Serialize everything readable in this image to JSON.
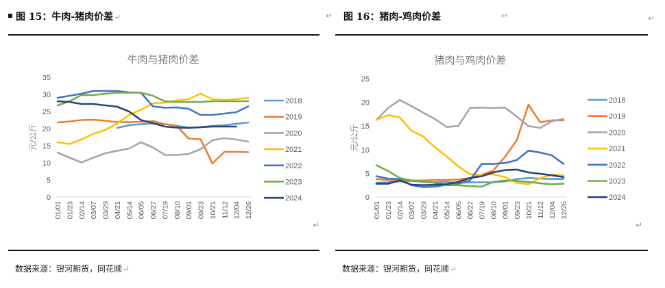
{
  "figures": [
    {
      "label": "图 15：牛肉-猪肉价差",
      "source": "数据来源：银河期货，同花顺",
      "para_mark": "↵"
    },
    {
      "label": "图 16：猪肉-鸡肉价差",
      "source": "数据来源：银河期货，同花顺",
      "para_mark": "↵"
    }
  ],
  "chart_data": [
    {
      "type": "line",
      "title": "牛肉与猪肉价差",
      "xlabel": "",
      "ylabel": "元/公斤",
      "ylim": [
        0,
        35
      ],
      "yticks": [
        0,
        5,
        10,
        15,
        20,
        25,
        30,
        35
      ],
      "grid": false,
      "legend_position": "right",
      "categories": [
        "01/01",
        "01/23",
        "02/14",
        "03/07",
        "03/29",
        "04/21",
        "05/14",
        "06/05",
        "06/27",
        "07/19",
        "08/10",
        "09/01",
        "09/23",
        "10/21",
        "11/12",
        "12/04",
        "12/26"
      ],
      "series": [
        {
          "name": "2018",
          "color": "#5B9BD5",
          "values": [
            null,
            null,
            null,
            null,
            null,
            20.2,
            21.0,
            21.3,
            21.5,
            21.3,
            20.8,
            20.3,
            20.4,
            20.8,
            21.0,
            21.4,
            21.8
          ]
        },
        {
          "name": "2019",
          "color": "#ED7D31",
          "values": [
            21.8,
            22.1,
            22.5,
            22.6,
            22.3,
            21.9,
            21.9,
            22.0,
            22.2,
            21.3,
            20.8,
            17.1,
            16.9,
            9.8,
            13.2,
            13.2,
            13.1
          ]
        },
        {
          "name": "2020",
          "color": "#A5A5A5",
          "values": [
            13.0,
            11.5,
            10.1,
            11.5,
            12.8,
            13.5,
            14.2,
            16.0,
            14.5,
            12.3,
            12.3,
            12.6,
            14.0,
            16.6,
            17.2,
            16.8,
            16.2
          ]
        },
        {
          "name": "2021",
          "color": "#FFC000",
          "values": [
            16.0,
            15.5,
            16.8,
            18.5,
            19.6,
            21.5,
            24.0,
            25.5,
            27.4,
            27.6,
            28.2,
            28.6,
            30.2,
            28.6,
            28.4,
            28.6,
            29.0
          ]
        },
        {
          "name": "2022",
          "color": "#4472C4",
          "values": [
            29.0,
            29.6,
            30.2,
            31.0,
            31.0,
            31.0,
            30.6,
            30.5,
            26.5,
            26.1,
            26.2,
            25.8,
            24.0,
            24.0,
            24.4,
            24.8,
            26.5
          ]
        },
        {
          "name": "2023",
          "color": "#70AD47",
          "values": [
            26.8,
            28.0,
            29.8,
            29.8,
            30.2,
            30.5,
            30.5,
            30.5,
            29.6,
            28.0,
            27.8,
            27.8,
            27.8,
            28.0,
            28.0,
            28.0,
            28.0
          ]
        },
        {
          "name": "2024",
          "color": "#264478",
          "values": [
            28.0,
            27.8,
            27.2,
            27.2,
            26.8,
            26.4,
            25.0,
            22.5,
            21.6,
            20.6,
            20.3,
            20.2,
            20.4,
            20.6,
            20.6,
            20.6,
            null
          ]
        }
      ]
    },
    {
      "type": "line",
      "title": "猪肉与鸡肉价差",
      "xlabel": "",
      "ylabel": "元/公斤",
      "ylim": [
        0,
        25
      ],
      "yticks": [
        0,
        5,
        10,
        15,
        20,
        25
      ],
      "grid": false,
      "legend_position": "right",
      "categories": [
        "01/01",
        "01/23",
        "02/14",
        "03/07",
        "03/29",
        "04/21",
        "05/14",
        "06/05",
        "06/27",
        "07/19",
        "08/10",
        "09/01",
        "09/23",
        "10/21",
        "11/12",
        "12/04",
        "12/26"
      ],
      "series": [
        {
          "name": "2018",
          "color": "#5B9BD5",
          "values": [
            3.0,
            3.1,
            3.3,
            3.4,
            3.2,
            3.1,
            3.2,
            3.0,
            3.1,
            3.1,
            3.1,
            3.3,
            3.8,
            4.0,
            3.9,
            3.8,
            3.8
          ]
        },
        {
          "name": "2019",
          "color": "#ED7D31",
          "values": [
            3.8,
            3.6,
            3.4,
            3.5,
            3.5,
            3.6,
            3.6,
            3.7,
            4.0,
            4.7,
            5.6,
            8.5,
            12.0,
            19.5,
            15.8,
            16.2,
            16.2
          ]
        },
        {
          "name": "2020",
          "color": "#A5A5A5",
          "values": [
            16.3,
            18.8,
            20.5,
            19.2,
            17.8,
            16.5,
            14.8,
            15.0,
            18.8,
            18.9,
            18.8,
            18.9,
            17.0,
            15.0,
            14.6,
            16.0,
            16.5
          ]
        },
        {
          "name": "2021",
          "color": "#FFC000",
          "values": [
            16.3,
            17.3,
            16.8,
            14.0,
            12.8,
            10.5,
            8.6,
            6.5,
            4.8,
            4.7,
            4.8,
            4.2,
            3.0,
            2.7,
            4.0,
            4.7,
            4.6
          ]
        },
        {
          "name": "2022",
          "color": "#4472C4",
          "values": [
            4.4,
            3.9,
            3.8,
            2.5,
            2.1,
            2.2,
            2.6,
            2.8,
            3.5,
            7.0,
            7.0,
            7.2,
            7.8,
            9.8,
            9.4,
            8.8,
            7.0
          ]
        },
        {
          "name": "2023",
          "color": "#70AD47",
          "values": [
            6.7,
            5.5,
            4.0,
            3.5,
            3.3,
            3.0,
            2.5,
            2.5,
            2.3,
            2.2,
            3.2,
            3.5,
            3.4,
            3.2,
            2.9,
            2.7,
            2.8
          ]
        },
        {
          "name": "2024",
          "color": "#264478",
          "values": [
            2.8,
            2.8,
            3.5,
            2.6,
            2.5,
            2.6,
            2.7,
            3.2,
            4.0,
            4.4,
            5.2,
            5.7,
            5.8,
            5.2,
            4.9,
            4.6,
            4.2
          ]
        }
      ]
    }
  ]
}
